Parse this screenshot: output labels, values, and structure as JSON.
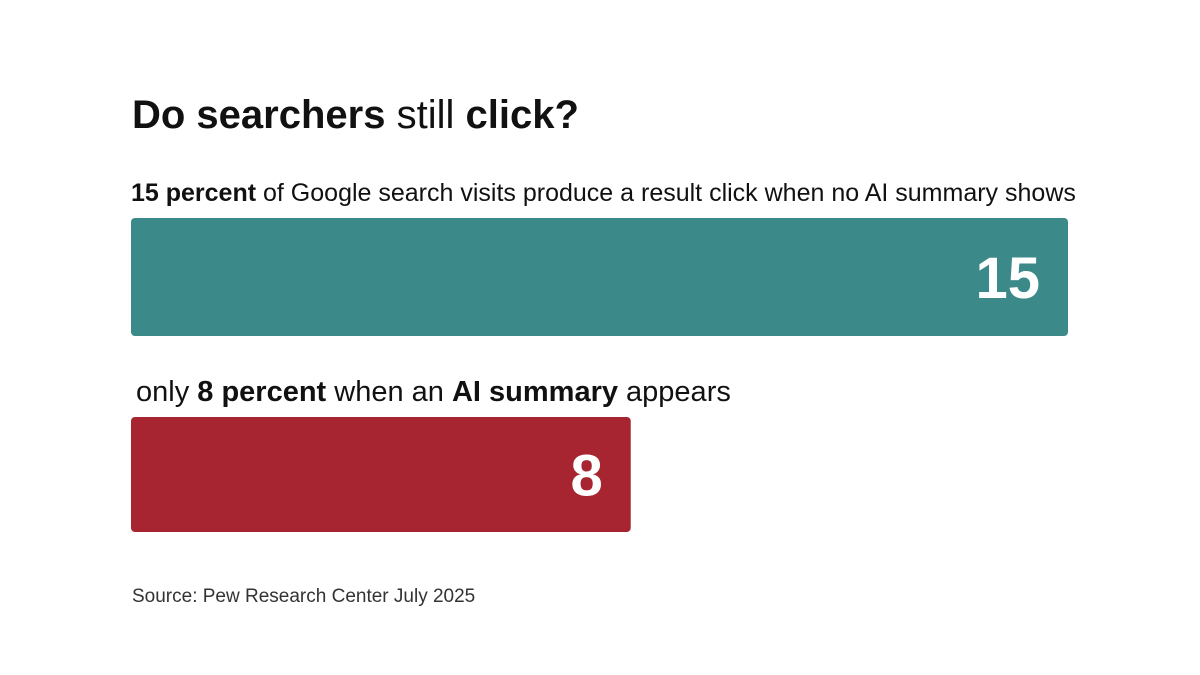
{
  "chart_data": {
    "type": "bar",
    "orientation": "horizontal",
    "title": [
      {
        "text": "Do searchers ",
        "bold": true
      },
      {
        "text": "still ",
        "bold": false
      },
      {
        "text": "click?",
        "bold": true
      }
    ],
    "categories": [
      [
        {
          "text": "15 percent ",
          "bold": true
        },
        {
          "text": "of Google search visits produce a result click when no AI summary shows",
          "bold": false
        }
      ],
      [
        {
          "text": "only ",
          "bold": false
        },
        {
          "text": "8 percent ",
          "bold": true
        },
        {
          "text": "when an ",
          "bold": false
        },
        {
          "text": "AI summary ",
          "bold": true
        },
        {
          "text": "appears",
          "bold": false
        }
      ]
    ],
    "values": [
      15,
      8
    ],
    "colors": [
      "#3b8a89",
      "#a72431"
    ],
    "xlim": [
      0,
      15
    ],
    "source": "Source: Pew Research Center July 2025"
  }
}
